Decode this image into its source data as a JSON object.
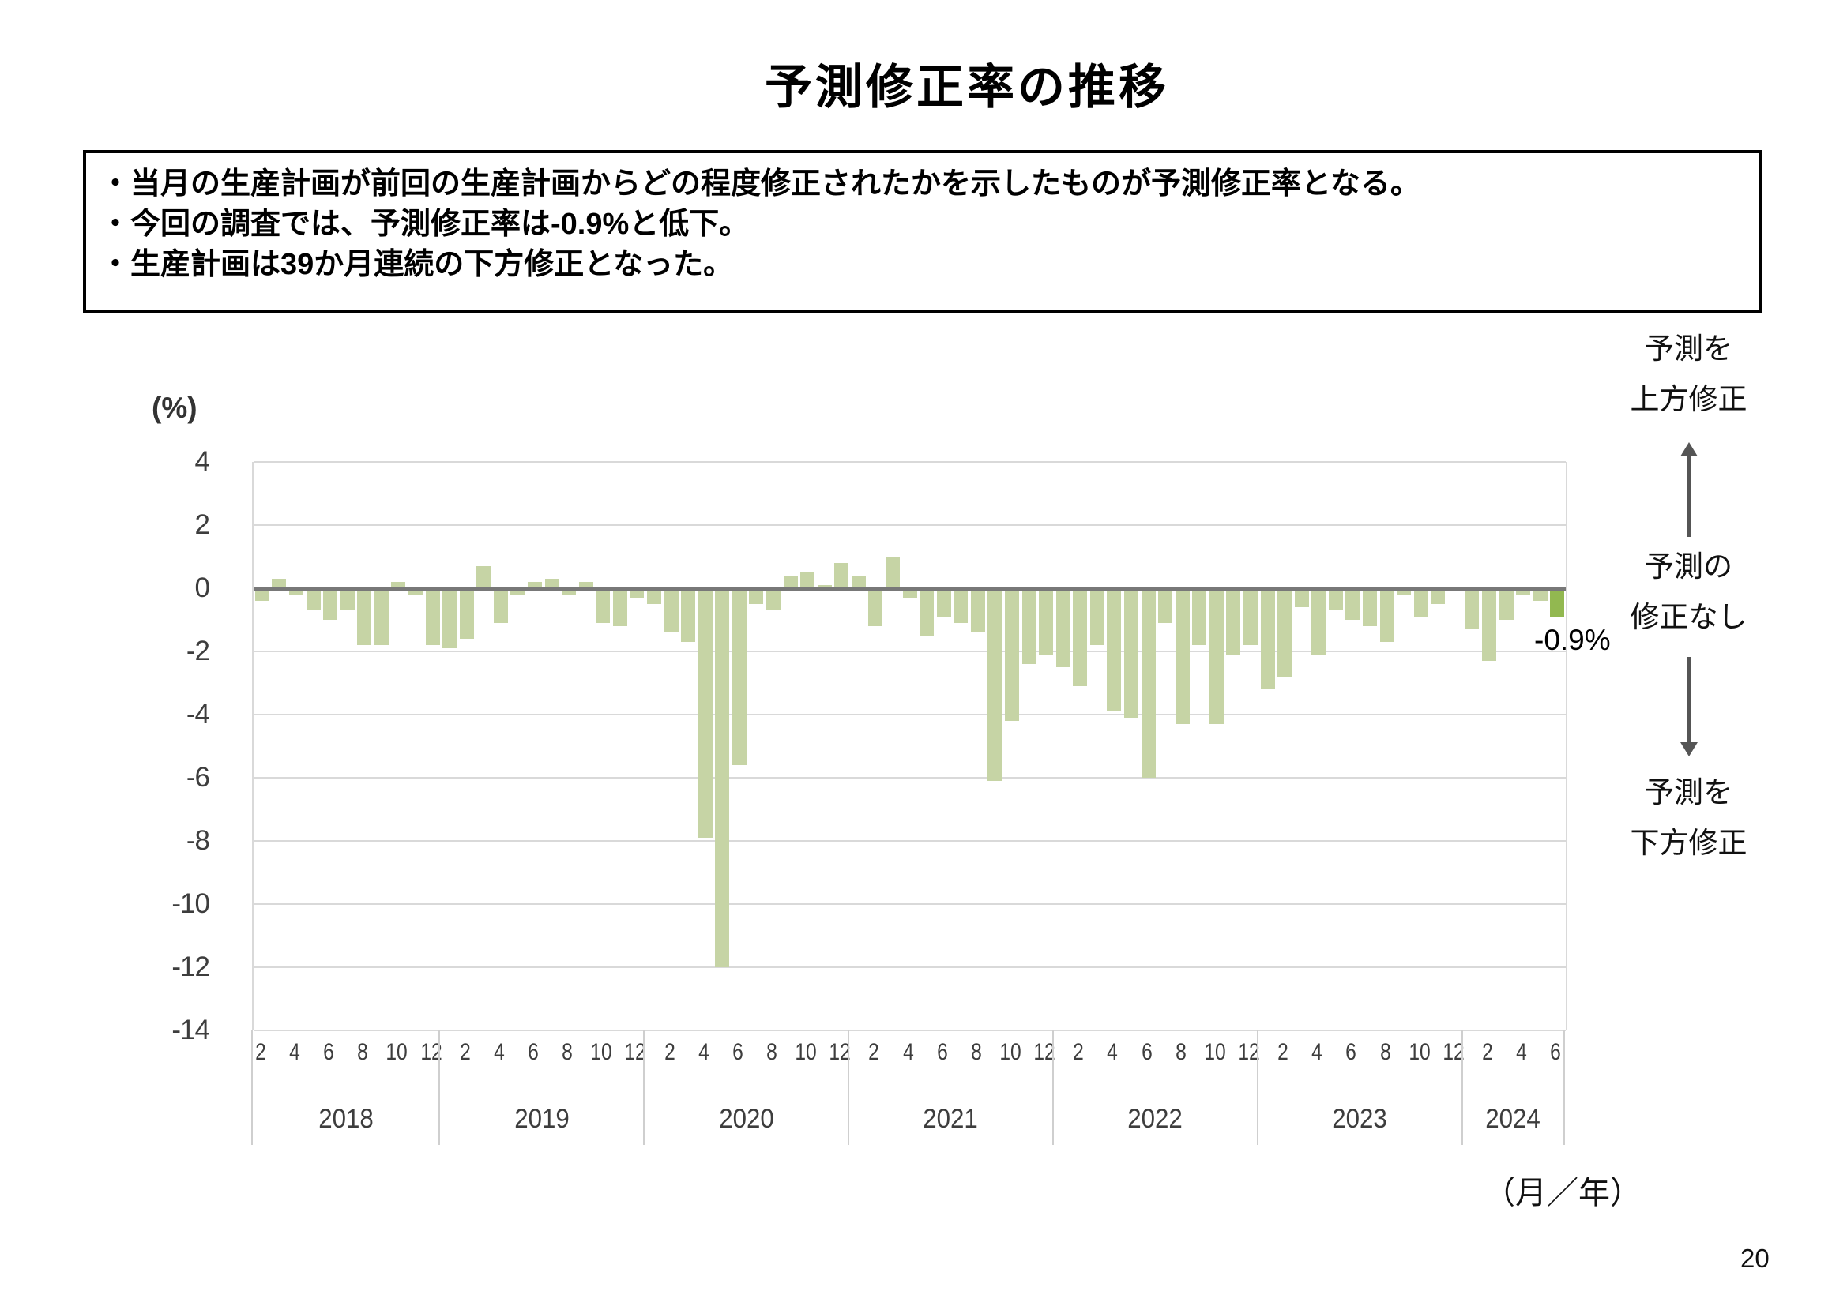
{
  "page": {
    "title": "予測修正率の推移",
    "page_number": "20"
  },
  "summary_box": {
    "lines": [
      "・当月の生産計画が前回の生産計画からどの程度修正されたかを示したものが予測修正率となる。",
      "・今回の調査では、予測修正率は-0.9%と低下。",
      "・生産計画は39か月連続の下方修正となった。"
    ]
  },
  "chart_data": {
    "type": "bar",
    "title": "予測修正率の推移",
    "series_name": "予測修正率",
    "unit_label": "(%)",
    "x_axis_label": "（月／年）",
    "ylim": [
      -14,
      4
    ],
    "y_ticks": [
      4,
      2,
      0,
      -2,
      -4,
      -6,
      -8,
      -10,
      -12,
      -14
    ],
    "grid": true,
    "latest_value_label": "-0.9%",
    "years": [
      {
        "label": "2018",
        "start_month": 2,
        "tick_months": [
          2,
          4,
          6,
          8,
          10,
          12
        ],
        "values": [
          -0.4,
          0.3,
          -0.2,
          -0.7,
          -1.0,
          -0.7,
          -1.8,
          -1.8,
          0.2,
          -0.2,
          -1.8
        ]
      },
      {
        "label": "2019",
        "start_month": 1,
        "tick_months": [
          2,
          4,
          6,
          8,
          10,
          12
        ],
        "values": [
          -1.9,
          -1.6,
          0.7,
          -1.1,
          -0.2,
          0.2,
          0.3,
          -0.2,
          0.2,
          -1.1,
          -1.2,
          -0.3
        ]
      },
      {
        "label": "2020",
        "start_month": 1,
        "tick_months": [
          2,
          4,
          6,
          8,
          10,
          12
        ],
        "values": [
          -0.5,
          -1.4,
          -1.7,
          -7.9,
          -12.0,
          -5.6,
          -0.5,
          -0.7,
          0.4,
          0.5,
          0.1,
          0.8
        ]
      },
      {
        "label": "2021",
        "start_month": 1,
        "tick_months": [
          2,
          4,
          6,
          8,
          10,
          12
        ],
        "values": [
          0.4,
          -1.2,
          1.0,
          -0.3,
          -1.5,
          -0.9,
          -1.1,
          -1.4,
          -6.1,
          -4.2,
          -2.4,
          -2.1
        ]
      },
      {
        "label": "2022",
        "start_month": 1,
        "tick_months": [
          2,
          4,
          6,
          8,
          10,
          12
        ],
        "values": [
          -2.5,
          -3.1,
          -1.8,
          -3.9,
          -4.1,
          -6.0,
          -1.1,
          -4.3,
          -1.8,
          -4.3,
          -2.1,
          -1.8
        ]
      },
      {
        "label": "2023",
        "start_month": 1,
        "tick_months": [
          2,
          4,
          6,
          8,
          10,
          12
        ],
        "values": [
          -3.2,
          -2.8,
          -0.6,
          -2.1,
          -0.7,
          -1.0,
          -1.2,
          -1.7,
          -0.2,
          -0.9,
          -0.5,
          -0.1
        ]
      },
      {
        "label": "2024",
        "start_month": 1,
        "tick_months": [
          2,
          4,
          6
        ],
        "values": [
          -1.3,
          -2.3,
          -1.0,
          -0.2,
          -0.4,
          -0.9
        ]
      }
    ],
    "colors": {
      "bar": "#c6d4a5",
      "bar_latest": "#92b850",
      "zero_line": "#787878",
      "gridline": "#d9d9d9",
      "separator": "#cfcfcf"
    },
    "right_legend": {
      "top": [
        "予測を",
        "上方修正"
      ],
      "middle": [
        "予測の",
        "修正なし"
      ],
      "bottom": [
        "予測を",
        "下方修正"
      ]
    }
  }
}
